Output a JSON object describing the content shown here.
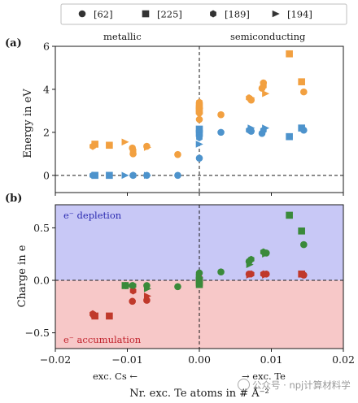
{
  "chart_data": {
    "type": "scatter",
    "legend": {
      "placement": "top",
      "entries": [
        {
          "label": "[62]",
          "marker": "circle"
        },
        {
          "label": "[225]",
          "marker": "square"
        },
        {
          "label": "[189]",
          "marker": "hexagon"
        },
        {
          "label": "[194]",
          "marker": "triangle-right"
        }
      ]
    },
    "x_axis": {
      "label": "Nr. exc. Te atoms in # Å⁻²",
      "range": [
        -0.02,
        0.02
      ],
      "ticks": [
        "−0.02",
        "−0.01",
        "0.00",
        "0.01",
        "0.02"
      ],
      "tick_values": [
        -0.02,
        -0.01,
        0.0,
        0.01,
        0.02
      ],
      "note_left": "exc. Cs ←",
      "note_right": "→ exc. Te"
    },
    "panels": [
      {
        "id": "a",
        "panel_label": "(a)",
        "ylabel": "Energy in eV",
        "ylim": [
          -0.8,
          6.0
        ],
        "yticks": [
          0,
          2,
          4,
          6
        ],
        "region_labels": {
          "left": "metallic",
          "right": "semiconducting"
        },
        "hline": 0,
        "vline": 0,
        "series": [
          {
            "name": "[62]",
            "color": "#f2a040",
            "marker": "circle",
            "points": [
              [
                -0.0093,
                1.27
              ],
              [
                -0.0092,
                1.0
              ],
              [
                -0.0073,
                1.35
              ],
              [
                -0.003,
                0.97
              ],
              [
                0.0,
                2.9
              ],
              [
                0.0,
                2.6
              ],
              [
                0.003,
                2.82
              ],
              [
                0.0072,
                3.5
              ],
              [
                0.0087,
                4.05
              ],
              [
                0.0089,
                4.3
              ],
              [
                0.0145,
                3.88
              ]
            ]
          },
          {
            "name": "[62]",
            "color": "#4d93cc",
            "marker": "circle",
            "points": [
              [
                -0.0092,
                0.0
              ],
              [
                -0.0073,
                0.0
              ],
              [
                -0.003,
                0.0
              ],
              [
                0.0,
                0.8
              ],
              [
                0.003,
                2.0
              ],
              [
                0.0072,
                2.05
              ],
              [
                0.0087,
                1.95
              ],
              [
                0.0145,
                2.1
              ]
            ]
          },
          {
            "name": "[225]",
            "color": "#f2a040",
            "marker": "square",
            "points": [
              [
                -0.0145,
                1.45
              ],
              [
                -0.0125,
                1.4
              ],
              [
                0.0,
                3.25
              ],
              [
                0.0,
                3.0
              ],
              [
                0.0125,
                5.65
              ],
              [
                0.0142,
                4.35
              ]
            ]
          },
          {
            "name": "[225]",
            "color": "#4d93cc",
            "marker": "square",
            "points": [
              [
                -0.0145,
                0.0
              ],
              [
                -0.0125,
                0.0
              ],
              [
                0.0,
                1.95
              ],
              [
                0.0,
                2.15
              ],
              [
                0.0125,
                1.8
              ],
              [
                0.0142,
                2.2
              ]
            ]
          },
          {
            "name": "[189]",
            "color": "#f2a040",
            "marker": "hexagon",
            "points": [
              [
                -0.0148,
                1.35
              ],
              [
                -0.0092,
                1.15
              ],
              [
                0.0,
                3.4
              ],
              [
                0.0069,
                3.6
              ],
              [
                0.0089,
                4.15
              ]
            ]
          },
          {
            "name": "[189]",
            "color": "#4d93cc",
            "marker": "hexagon",
            "points": [
              [
                -0.0148,
                0.0
              ],
              [
                -0.0092,
                0.0
              ],
              [
                0.0,
                1.75
              ],
              [
                0.0069,
                2.1
              ],
              [
                0.0089,
                2.1
              ]
            ]
          },
          {
            "name": "[194]",
            "color": "#f2a040",
            "marker": "triangle-right",
            "points": [
              [
                -0.0103,
                1.55
              ],
              [
                -0.0072,
                1.3
              ],
              [
                0.0,
                3.1
              ],
              [
                0.0072,
                3.6
              ],
              [
                0.0092,
                3.8
              ]
            ]
          },
          {
            "name": "[194]",
            "color": "#4d93cc",
            "marker": "triangle-right",
            "points": [
              [
                -0.0103,
                0.0
              ],
              [
                -0.0072,
                0.0
              ],
              [
                0.0,
                1.45
              ],
              [
                0.0072,
                2.2
              ],
              [
                0.0092,
                2.2
              ]
            ]
          }
        ]
      },
      {
        "id": "b",
        "panel_label": "(b)",
        "ylabel": "Charge in e",
        "ylim": [
          -0.65,
          0.72
        ],
        "yticks": [
          -0.5,
          0.0,
          0.5
        ],
        "ytick_labels": [
          "−0.5",
          "0.0",
          "0.5"
        ],
        "regions": [
          {
            "label": "e⁻ depletion",
            "from": 0,
            "to": 0.72,
            "color": "#c8c8f6",
            "text_color": "#2a2ab0",
            "placement": "top-left"
          },
          {
            "label": "e⁻ accumulation",
            "from": -0.65,
            "to": 0,
            "color": "#f7c8c8",
            "text_color": "#c0202a",
            "placement": "bottom-left"
          }
        ],
        "hline": 0,
        "vline": 0,
        "series": [
          {
            "name": "[62]",
            "color": "#c0392b",
            "marker": "circle",
            "points": [
              [
                -0.0147,
                -0.33
              ],
              [
                -0.0093,
                -0.2
              ],
              [
                -0.0073,
                -0.19
              ],
              [
                0.0,
                0.02
              ],
              [
                0.0069,
                0.06
              ],
              [
                0.0093,
                0.06
              ],
              [
                0.0145,
                0.05
              ]
            ]
          },
          {
            "name": "[62]",
            "color": "#3a8a3a",
            "marker": "circle",
            "points": [
              [
                -0.0093,
                -0.05
              ],
              [
                -0.0073,
                -0.05
              ],
              [
                -0.003,
                -0.06
              ],
              [
                0.0,
                0.07
              ],
              [
                0.003,
                0.08
              ],
              [
                0.0069,
                0.18
              ],
              [
                0.0093,
                0.26
              ],
              [
                0.0145,
                0.34
              ]
            ]
          },
          {
            "name": "[225]",
            "color": "#c0392b",
            "marker": "square",
            "points": [
              [
                -0.0145,
                -0.34
              ],
              [
                -0.0125,
                -0.34
              ],
              [
                0.0,
                -0.02
              ],
              [
                0.0142,
                0.06
              ]
            ]
          },
          {
            "name": "[225]",
            "color": "#3a8a3a",
            "marker": "square",
            "points": [
              [
                -0.0103,
                -0.05
              ],
              [
                0.0,
                -0.04
              ],
              [
                0.0,
                0.0
              ],
              [
                0.0125,
                0.62
              ],
              [
                0.0142,
                0.47
              ]
            ]
          },
          {
            "name": "[189]",
            "color": "#c0392b",
            "marker": "hexagon",
            "points": [
              [
                -0.0148,
                -0.32
              ],
              [
                -0.0092,
                -0.1
              ],
              [
                0.0072,
                0.06
              ],
              [
                0.0089,
                0.06
              ]
            ]
          },
          {
            "name": "[189]",
            "color": "#3a8a3a",
            "marker": "hexagon",
            "points": [
              [
                -0.0102,
                -0.05
              ],
              [
                -0.0092,
                -0.05
              ],
              [
                0.0,
                0.0
              ],
              [
                0.0072,
                0.2
              ],
              [
                0.0089,
                0.27
              ]
            ]
          },
          {
            "name": "[194]",
            "color": "#c0392b",
            "marker": "triangle-right",
            "points": [
              [
                -0.0072,
                -0.15
              ],
              [
                0.007,
                0.05
              ],
              [
                0.0092,
                0.05
              ]
            ]
          },
          {
            "name": "[194]",
            "color": "#3a8a3a",
            "marker": "triangle-right",
            "points": [
              [
                -0.0072,
                -0.08
              ],
              [
                0.0,
                0.03
              ],
              [
                0.007,
                0.15
              ],
              [
                0.0092,
                0.25
              ]
            ]
          }
        ]
      }
    ]
  },
  "watermark": "公众号 · npj计算材料学"
}
